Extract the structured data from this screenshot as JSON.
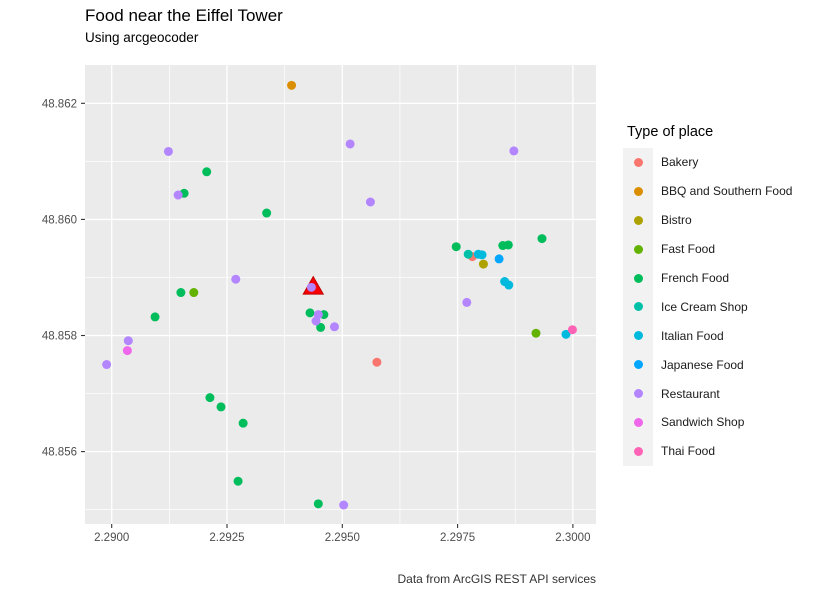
{
  "header": {
    "title": "Food near the Eiffel Tower",
    "subtitle": "Using arcgeocoder"
  },
  "caption": "Data from ArcGIS REST API services",
  "legend": {
    "title": "Type of place"
  },
  "chart_data": {
    "type": "scatter",
    "title": "Food near the Eiffel Tower",
    "subtitle": "Using arcgeocoder",
    "xlabel": "",
    "ylabel": "",
    "xlim": [
      2.289421,
      2.300501
    ],
    "ylim": [
      48.854753,
      48.86266
    ],
    "x_ticks": [
      2.29,
      2.2925,
      2.295,
      2.2975,
      2.3
    ],
    "x_tick_labels": [
      "2.2900",
      "2.2925",
      "2.2950",
      "2.2975",
      "2.3000"
    ],
    "y_ticks": [
      48.862,
      48.86,
      48.858,
      48.856
    ],
    "y_tick_labels": [
      "48.862",
      "48.860",
      "48.858",
      "48.856"
    ],
    "x_minor_ticks": [
      2.29125,
      2.29375,
      2.29625,
      2.29875
    ],
    "y_minor_ticks": [
      48.861,
      48.859,
      48.857,
      48.855
    ],
    "grid": "on",
    "legend_position": "right",
    "panel_bg": "#EBEBEB",
    "grid_color": "#FFFFFF",
    "axis_text_color": "#4D4D4D",
    "tick_mark_color": "#333333",
    "series": [
      {
        "name": "Bakery",
        "color": "#F8766D",
        "points": [
          [
            2.29575,
            48.85754
          ],
          [
            2.29782,
            48.85936
          ]
        ]
      },
      {
        "name": "BBQ and Southern Food",
        "color": "#DB8E00",
        "points": [
          [
            2.2939,
            48.86231
          ]
        ]
      },
      {
        "name": "Bistro",
        "color": "#AEA200",
        "points": [
          [
            2.29806,
            48.85923
          ]
        ]
      },
      {
        "name": "Fast Food",
        "color": "#64B200",
        "points": [
          [
            2.29178,
            48.85874
          ],
          [
            2.2992,
            48.85804
          ]
        ]
      },
      {
        "name": "French Food",
        "color": "#00BD5C",
        "points": [
          [
            2.29206,
            48.86082
          ],
          [
            2.29157,
            48.86045
          ],
          [
            2.29336,
            48.86011
          ],
          [
            2.2915,
            48.85874
          ],
          [
            2.2943,
            48.85839
          ],
          [
            2.2946,
            48.85836
          ],
          [
            2.29453,
            48.85814
          ],
          [
            2.29094,
            48.85832
          ],
          [
            2.29213,
            48.85693
          ],
          [
            2.29237,
            48.85677
          ],
          [
            2.29285,
            48.85649
          ],
          [
            2.29274,
            48.85549
          ],
          [
            2.29448,
            48.8551
          ],
          [
            2.29747,
            48.85953
          ],
          [
            2.29848,
            48.85955
          ],
          [
            2.2986,
            48.85956
          ],
          [
            2.29933,
            48.85967
          ]
        ]
      },
      {
        "name": "Ice Cream Shop",
        "color": "#00C1A7",
        "points": [
          [
            2.29773,
            48.8594
          ]
        ]
      },
      {
        "name": "Italian Food",
        "color": "#00BADE",
        "points": [
          [
            2.29795,
            48.8594
          ],
          [
            2.29803,
            48.85939
          ],
          [
            2.29852,
            48.85893
          ],
          [
            2.29861,
            48.85887
          ],
          [
            2.29985,
            48.85802
          ]
        ]
      },
      {
        "name": "Japanese Food",
        "color": "#00A6FF",
        "points": [
          [
            2.2984,
            48.85932
          ]
        ]
      },
      {
        "name": "Restaurant",
        "color": "#B385FF",
        "points": [
          [
            2.29123,
            48.86117
          ],
          [
            2.29517,
            48.8613
          ],
          [
            2.29872,
            48.86118
          ],
          [
            2.29144,
            48.86042
          ],
          [
            2.29561,
            48.8603
          ],
          [
            2.29269,
            48.85897
          ],
          [
            2.29433,
            48.85883
          ],
          [
            2.29448,
            48.85836
          ],
          [
            2.29443,
            48.85825
          ],
          [
            2.29483,
            48.85815
          ],
          [
            2.29036,
            48.85791
          ],
          [
            2.28989,
            48.8575
          ],
          [
            2.29503,
            48.85508
          ],
          [
            2.2977,
            48.85857
          ]
        ]
      },
      {
        "name": "Sandwich Shop",
        "color": "#EF67EB",
        "points": [
          [
            2.29034,
            48.85774
          ]
        ]
      },
      {
        "name": "Thai Food",
        "color": "#FF63B6",
        "points": [
          [
            2.29999,
            48.8581
          ]
        ]
      }
    ],
    "marker": {
      "name": "eiffel-tower-marker",
      "shape": "triangle",
      "color": "#F80000",
      "stroke": "#C00000",
      "lon": 2.29437,
      "lat": 48.85885
    }
  }
}
